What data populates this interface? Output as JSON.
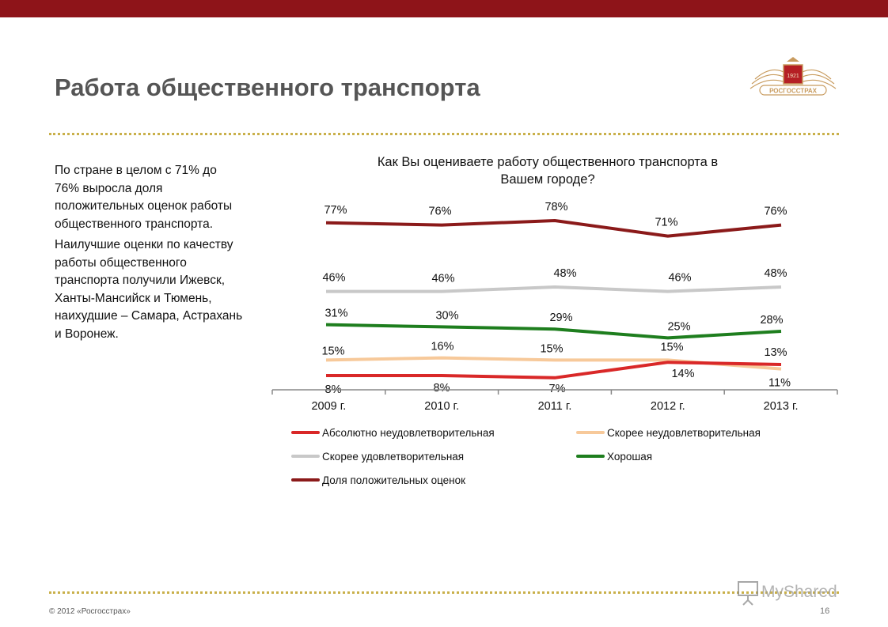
{
  "header": {
    "title": "Работа общественного транспорта"
  },
  "logo": {
    "year": "1921",
    "brand": "РОСГОССТРАХ"
  },
  "text": {
    "p1": [
      "По стране в целом с 71% до",
      "76% выросла доля",
      "положительных оценок работы",
      "общественного транспорта."
    ],
    "p2": [
      "Наилучшие оценки по качеству",
      "работы общественного",
      "транспорта получили Ижевск,",
      "Ханты-Мансийск и Тюмень,",
      "наихудшие – Самара, Астрахань",
      "и Воронеж."
    ]
  },
  "chart_data": {
    "type": "line",
    "title": [
      "Как Вы оцениваете работу общественного транспорта в",
      "Вашем городе?"
    ],
    "categories": [
      "2009 г.",
      "2010 г.",
      "2011 г.",
      "2012 г.",
      "2013 г."
    ],
    "series": [
      {
        "key": "pos",
        "name": "Доля положительных оценок",
        "color": "#8b1a1a",
        "values": [
          77,
          76,
          78,
          71,
          76
        ],
        "labels": [
          "77%",
          "76%",
          "78%",
          "71%",
          "76%"
        ]
      },
      {
        "key": "rs",
        "name": "Скорее удовлетворительная",
        "color": "#c8c8c8",
        "values": [
          46,
          46,
          48,
          46,
          48
        ],
        "labels": [
          "46%",
          "46%",
          "48%",
          "46%",
          "48%"
        ]
      },
      {
        "key": "good",
        "name": "Хорошая",
        "color": "#1e7e1e",
        "values": [
          31,
          30,
          29,
          25,
          28
        ],
        "labels": [
          "31%",
          "30%",
          "29%",
          "25%",
          "28%"
        ]
      },
      {
        "key": "ru",
        "name": "Скорее неудовлетворительная",
        "color": "#f7c99a",
        "values": [
          15,
          16,
          15,
          15,
          11
        ],
        "labels": [
          "15%",
          "16%",
          "15%",
          "15%",
          "11%"
        ]
      },
      {
        "key": "au",
        "name": "Абсолютно неудовлетворительная",
        "color": "#d92828",
        "values": [
          8,
          8,
          7,
          14,
          13
        ],
        "labels": [
          "8%",
          "8%",
          "7%",
          "14%",
          "13%"
        ]
      }
    ],
    "legend_order": [
      "au",
      "ru",
      "rs",
      "good",
      "pos"
    ],
    "y_axis_visible": false,
    "grid": false,
    "legend_position": "bottom"
  },
  "footer": {
    "copyright": "© 2012 «Росгосстрах»",
    "page": "16",
    "watermark": "MyShared"
  }
}
